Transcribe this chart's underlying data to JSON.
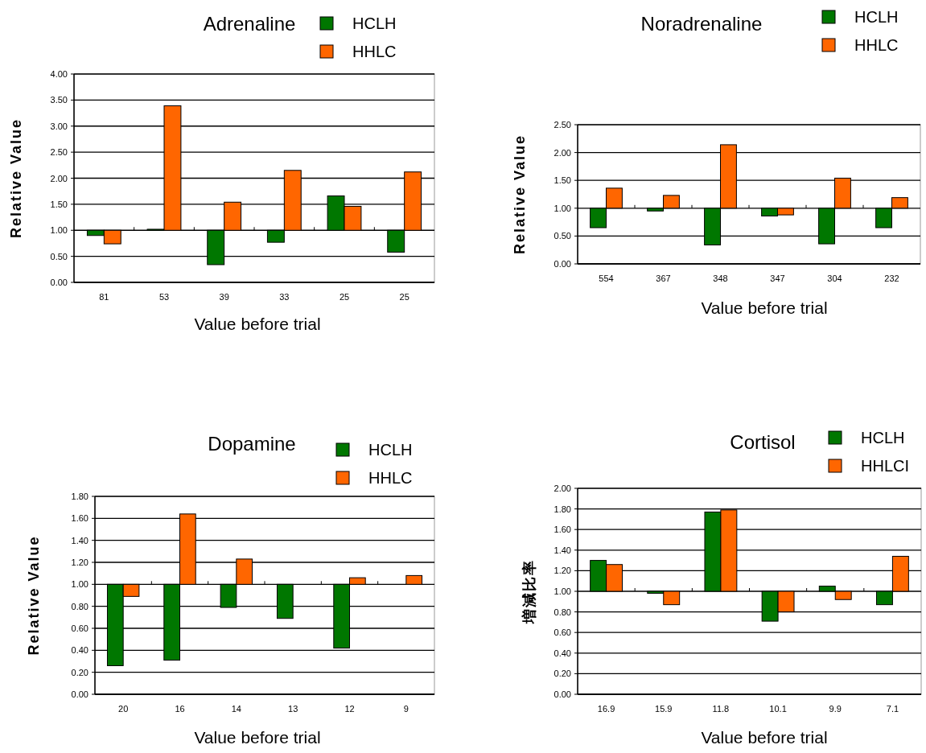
{
  "chart_data": [
    {
      "type": "bar",
      "title": "Adrenaline",
      "xlabel": "Value before trial",
      "ylabel": "Relative Value",
      "categories": [
        "81",
        "53",
        "39",
        "33",
        "25",
        "25"
      ],
      "series": [
        {
          "name": "HCLH",
          "color": "#007700",
          "base": [
            1,
            1,
            1,
            1,
            1,
            1
          ],
          "values": [
            -0.1,
            0.02,
            -0.66,
            -0.23,
            0.66,
            -0.42
          ]
        },
        {
          "name": "HHLC",
          "color": "#ff6600",
          "base": [
            1,
            1,
            1,
            1,
            1,
            1
          ],
          "values": [
            -0.26,
            2.39,
            0.54,
            1.15,
            0.46,
            1.12
          ]
        }
      ],
      "ylim": [
        0,
        4
      ],
      "yticks": [
        {
          "value": 0,
          "label": "0.00"
        },
        {
          "value": 0.5,
          "label": "0.50"
        },
        {
          "value": 1,
          "label": "1.00"
        },
        {
          "value": 1.5,
          "label": "1.50"
        },
        {
          "value": 2,
          "label": "2.00"
        },
        {
          "value": 2.5,
          "label": "2.50"
        },
        {
          "value": 3,
          "label": "3.00"
        },
        {
          "value": 3.5,
          "label": "3.50"
        },
        {
          "value": 4,
          "label": "4.00"
        }
      ],
      "grid": "y",
      "legend": "top right"
    },
    {
      "type": "bar",
      "title": "Noradrenaline",
      "xlabel": "Value before trial",
      "ylabel": "Relative Value",
      "categories": [
        "554",
        "367",
        "348",
        "347",
        "304",
        "232"
      ],
      "series": [
        {
          "name": "HCLH",
          "color": "#007700",
          "base": [
            1,
            1,
            1,
            1,
            1,
            1
          ],
          "values": [
            -0.35,
            -0.05,
            -0.66,
            -0.14,
            -0.64,
            -0.35
          ]
        },
        {
          "name": "HHLC",
          "color": "#ff6600",
          "base": [
            1,
            1,
            1,
            1,
            1,
            1
          ],
          "values": [
            0.36,
            0.23,
            1.14,
            -0.12,
            0.54,
            0.19
          ]
        }
      ],
      "ylim": [
        0,
        2.5
      ],
      "yticks": [
        {
          "value": 0,
          "label": "0.00"
        },
        {
          "value": 0.5,
          "label": "0.50"
        },
        {
          "value": 1,
          "label": "1.00"
        },
        {
          "value": 1.5,
          "label": "1.50"
        },
        {
          "value": 2,
          "label": "2.00"
        },
        {
          "value": 2.5,
          "label": "2.50"
        }
      ],
      "grid": "y",
      "legend": "top right"
    },
    {
      "type": "bar",
      "title": "Dopamine",
      "xlabel": "Value before trial",
      "ylabel": "Relative Value",
      "categories": [
        "20",
        "16",
        "14",
        "13",
        "12",
        "9"
      ],
      "series": [
        {
          "name": "HCLH",
          "color": "#007700",
          "base": [
            1,
            1,
            1,
            1,
            1,
            null
          ],
          "values": [
            -0.74,
            -0.69,
            -0.21,
            -0.31,
            -0.58,
            null
          ]
        },
        {
          "name": "HHLC",
          "color": "#ff6600",
          "base": [
            1,
            1,
            1,
            null,
            1,
            1
          ],
          "values": [
            -0.11,
            0.64,
            0.23,
            null,
            0.06,
            0.08
          ]
        }
      ],
      "ylim": [
        0,
        1.8
      ],
      "yticks": [
        {
          "value": 0,
          "label": "0.00"
        },
        {
          "value": 0.2,
          "label": "0.20"
        },
        {
          "value": 0.4,
          "label": "0.40"
        },
        {
          "value": 0.6,
          "label": "0.60"
        },
        {
          "value": 0.8,
          "label": "0.80"
        },
        {
          "value": 1,
          "label": "1.00"
        },
        {
          "value": 1.2,
          "label": "1.20"
        },
        {
          "value": 1.4,
          "label": "1.40"
        },
        {
          "value": 1.6,
          "label": "1.60"
        },
        {
          "value": 1.8,
          "label": "1.80"
        }
      ],
      "grid": "y",
      "legend": "top right"
    },
    {
      "type": "bar",
      "title": "Cortisol",
      "xlabel": "Value before trial",
      "ylabel": "増減比率",
      "categories": [
        "16.9",
        "15.9",
        "11.8",
        "10.1",
        "9.9",
        "7.1"
      ],
      "series": [
        {
          "name": "HCLH",
          "color": "#007700",
          "base": [
            1,
            1,
            1,
            1,
            1,
            1
          ],
          "values": [
            0.3,
            -0.02,
            0.77,
            -0.29,
            0.05,
            -0.13
          ]
        },
        {
          "name": "HHLCI",
          "color": "#ff6600",
          "base": [
            1,
            1,
            1,
            1,
            1,
            1
          ],
          "values": [
            0.26,
            -0.13,
            0.79,
            -0.2,
            -0.08,
            0.34
          ]
        }
      ],
      "ylim": [
        0,
        2
      ],
      "yticks": [
        {
          "value": 0,
          "label": "0.00"
        },
        {
          "value": 0.2,
          "label": "0.20"
        },
        {
          "value": 0.4,
          "label": "0.40"
        },
        {
          "value": 0.6,
          "label": "0.60"
        },
        {
          "value": 0.8,
          "label": "0.80"
        },
        {
          "value": 1,
          "label": "1.00"
        },
        {
          "value": 1.2,
          "label": "1.20"
        },
        {
          "value": 1.4,
          "label": "1.40"
        },
        {
          "value": 1.6,
          "label": "1.60"
        },
        {
          "value": 1.8,
          "label": "1.80"
        },
        {
          "value": 2,
          "label": "2.00"
        }
      ],
      "grid": "y",
      "legend": "top right"
    }
  ]
}
